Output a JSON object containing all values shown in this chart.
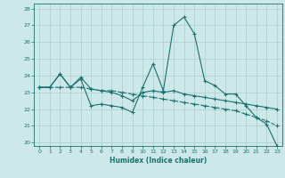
{
  "xlabel": "Humidex (Indice chaleur)",
  "bg_color": "#cce8e8",
  "grid_color": "#aacece",
  "line_color": "#1a7070",
  "xlim": [
    -0.5,
    23.5
  ],
  "ylim": [
    19.8,
    28.3
  ],
  "xticks": [
    0,
    1,
    2,
    3,
    4,
    5,
    6,
    7,
    8,
    9,
    10,
    11,
    12,
    13,
    14,
    15,
    16,
    17,
    18,
    19,
    20,
    21,
    22,
    23
  ],
  "yticks": [
    20,
    21,
    22,
    23,
    24,
    25,
    26,
    27,
    28
  ],
  "line1_x": [
    0,
    1,
    2,
    3,
    4,
    5,
    6,
    7,
    8,
    9,
    10,
    11,
    12,
    13,
    14,
    15,
    16,
    17,
    18,
    19,
    20,
    21,
    22,
    23
  ],
  "line1_y": [
    23.3,
    23.3,
    24.1,
    23.3,
    23.8,
    22.2,
    22.3,
    22.2,
    22.1,
    21.8,
    23.3,
    24.7,
    23.1,
    27.0,
    27.5,
    26.5,
    23.7,
    23.4,
    22.9,
    22.9,
    22.2,
    21.5,
    21.1,
    19.8
  ],
  "line2_x": [
    0,
    1,
    2,
    3,
    4,
    5,
    6,
    7,
    8,
    9,
    10,
    11,
    12,
    13,
    14,
    15,
    16,
    17,
    18,
    19,
    20,
    21,
    22,
    23
  ],
  "line2_y": [
    23.3,
    23.3,
    24.1,
    23.3,
    23.9,
    23.2,
    23.1,
    23.0,
    22.8,
    22.5,
    23.0,
    23.1,
    23.0,
    23.1,
    22.9,
    22.8,
    22.7,
    22.6,
    22.5,
    22.4,
    22.3,
    22.2,
    22.1,
    22.0
  ],
  "line3_x": [
    0,
    1,
    2,
    3,
    4,
    5,
    6,
    7,
    8,
    9,
    10,
    11,
    12,
    13,
    14,
    15,
    16,
    17,
    18,
    19,
    20,
    21,
    22,
    23
  ],
  "line3_y": [
    23.3,
    23.3,
    23.3,
    23.3,
    23.3,
    23.2,
    23.1,
    23.1,
    23.0,
    22.9,
    22.8,
    22.7,
    22.6,
    22.5,
    22.4,
    22.3,
    22.2,
    22.1,
    22.0,
    21.9,
    21.7,
    21.5,
    21.3,
    21.0
  ]
}
